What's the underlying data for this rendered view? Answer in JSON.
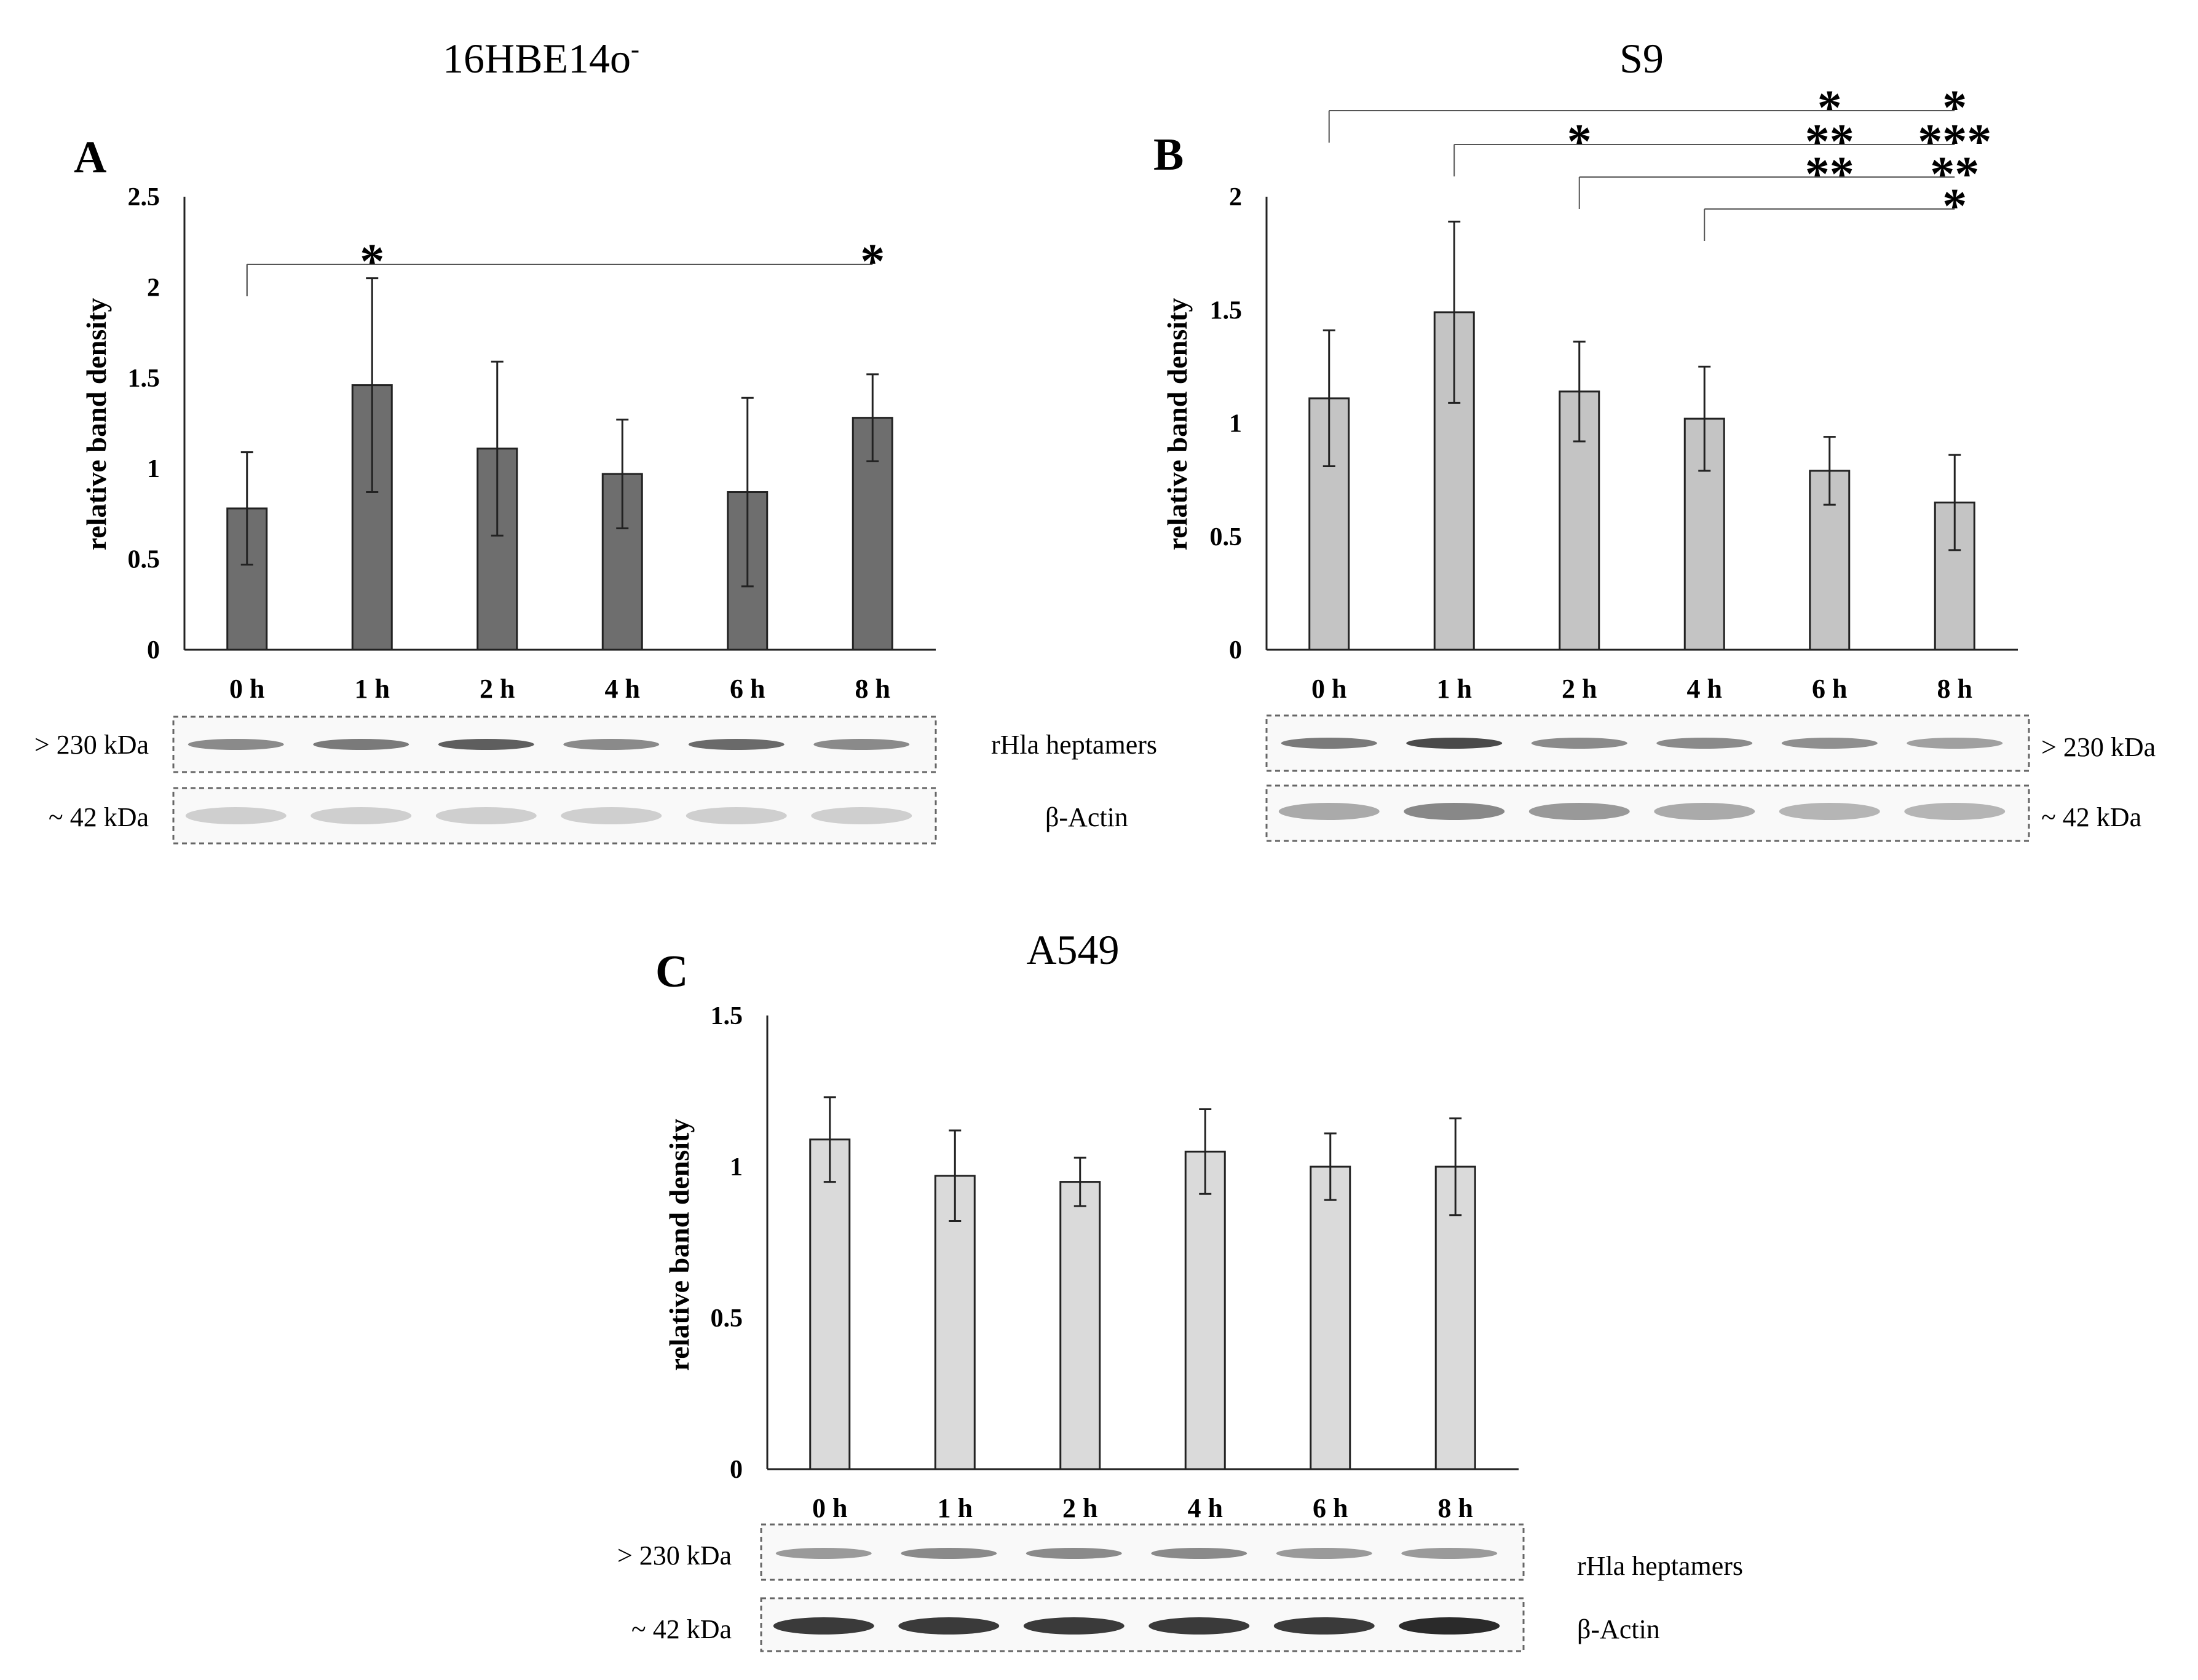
{
  "chart_data": [
    {
      "panel": "A",
      "title": "16HBE14o",
      "title_sup": "-",
      "type": "bar",
      "ylabel": "relative band density",
      "ylim": [
        0,
        2.5
      ],
      "yticks": [
        "0",
        "0.5",
        "1",
        "1.5",
        "2",
        "2.5"
      ],
      "categories": [
        "0 h",
        "1 h",
        "2 h",
        "4 h",
        "6 h",
        "8 h"
      ],
      "values": [
        0.78,
        1.46,
        1.11,
        0.97,
        0.87,
        1.28
      ],
      "errors": [
        0.31,
        0.59,
        0.48,
        0.3,
        0.52,
        0.24
      ],
      "bar_color": "#6e6e6e",
      "significance": [
        {
          "from": 0,
          "to": 1,
          "marks": "*"
        },
        {
          "from": 0,
          "to": 5,
          "marks": "*"
        }
      ],
      "blot": {
        "upper_marker": "> 230 kDa",
        "lower_marker": "~ 42 kDa",
        "upper_band": "rHla heptamers",
        "lower_band": "β-Actin"
      }
    },
    {
      "panel": "B",
      "title": "S9",
      "type": "bar",
      "ylabel": "relative band density",
      "ylim": [
        0,
        2
      ],
      "yticks": [
        "0",
        "0.5",
        "1",
        "1.5",
        "2"
      ],
      "categories": [
        "0 h",
        "1 h",
        "2 h",
        "4 h",
        "6 h",
        "8 h"
      ],
      "values": [
        1.11,
        1.49,
        1.14,
        1.02,
        0.79,
        0.65
      ],
      "errors": [
        0.3,
        0.4,
        0.22,
        0.23,
        0.15,
        0.21
      ],
      "bar_color": "#c4c4c4",
      "significance": [
        {
          "from": 0,
          "to": 5,
          "marks": "*",
          "extra": [
            {
              "at": 4,
              "marks": "*"
            }
          ]
        },
        {
          "from": 1,
          "to": 5,
          "marks": "***",
          "extra": [
            {
              "at": 2,
              "marks": "*"
            },
            {
              "at": 4,
              "marks": "**"
            }
          ]
        },
        {
          "from": 2,
          "to": 5,
          "marks": "**",
          "extra": [
            {
              "at": 4,
              "marks": "**"
            }
          ]
        },
        {
          "from": 3,
          "to": 5,
          "marks": "*"
        }
      ],
      "blot": {
        "upper_marker": "> 230 kDa",
        "lower_marker": "~ 42 kDa"
      }
    },
    {
      "panel": "C",
      "title": "A549",
      "type": "bar",
      "ylabel": "relative band density",
      "ylim": [
        0,
        1.5
      ],
      "yticks": [
        "0",
        "0.5",
        "1",
        "1.5"
      ],
      "categories": [
        "0 h",
        "1 h",
        "2 h",
        "4 h",
        "6 h",
        "8 h"
      ],
      "values": [
        1.09,
        0.97,
        0.95,
        1.05,
        1.0,
        1.0
      ],
      "errors": [
        0.14,
        0.15,
        0.08,
        0.14,
        0.11,
        0.16
      ],
      "bar_color": "#dadada",
      "significance": [],
      "blot": {
        "upper_marker": "> 230 kDa",
        "lower_marker": "~ 42 kDa",
        "upper_band": "rHla heptamers",
        "lower_band": "β-Actin"
      }
    }
  ]
}
